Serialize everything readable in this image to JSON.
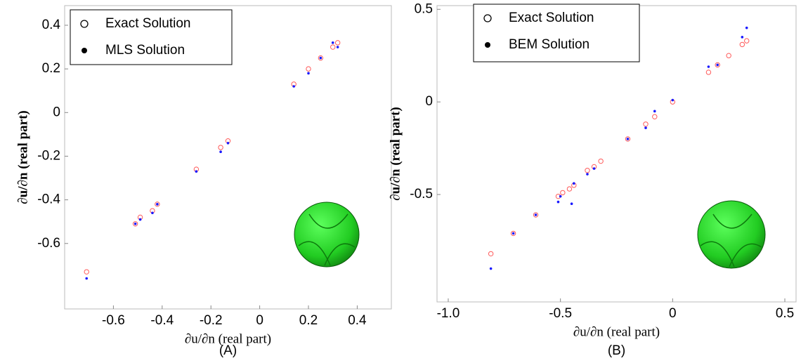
{
  "chart_data": [
    {
      "type": "scatter",
      "caption": "(A)",
      "xlabel": "∂u/∂n (real part)",
      "ylabel": "∂u/∂n (real part)",
      "xlim": [
        -0.8,
        0.54
      ],
      "ylim": [
        -0.9,
        0.49
      ],
      "xticks": [
        -0.6,
        -0.4,
        -0.2,
        0,
        0.2,
        0.4
      ],
      "yticks": [
        -0.6,
        -0.4,
        -0.2,
        0,
        0.2,
        0.4
      ],
      "series": [
        {
          "name": "Exact Solution",
          "color": "#ff5a5a",
          "marker": "open",
          "x": [
            -0.71,
            -0.51,
            -0.49,
            -0.44,
            -0.42,
            -0.26,
            -0.16,
            -0.13,
            0.14,
            0.2,
            0.25,
            0.3,
            0.32
          ],
          "values": [
            -0.73,
            -0.51,
            -0.48,
            -0.45,
            -0.42,
            -0.26,
            -0.16,
            -0.13,
            0.13,
            0.2,
            0.25,
            0.3,
            0.32
          ]
        },
        {
          "name": "MLS Solution",
          "color": "#1a1aff",
          "marker": "filled",
          "x": [
            -0.71,
            -0.51,
            -0.49,
            -0.44,
            -0.42,
            -0.26,
            -0.16,
            -0.13,
            0.14,
            0.2,
            0.25,
            0.3,
            0.32
          ],
          "values": [
            -0.76,
            -0.51,
            -0.49,
            -0.46,
            -0.42,
            -0.27,
            -0.18,
            -0.14,
            0.12,
            0.18,
            0.25,
            0.32,
            0.3
          ]
        }
      ]
    },
    {
      "type": "scatter",
      "caption": "(B)",
      "xlabel": "∂u/∂n (real part)",
      "ylabel": "∂u/∂n (real part)",
      "xlim": [
        -1.05,
        0.55
      ],
      "ylim": [
        -1.08,
        0.52
      ],
      "xticks": [
        {
          "value": -1,
          "label": "-1.0"
        },
        -0.5,
        0,
        0.5
      ],
      "yticks": [
        -0.5,
        0,
        0.5
      ],
      "series": [
        {
          "name": "Exact Solution",
          "color": "#ff5a5a",
          "marker": "open",
          "x": [
            -0.81,
            -0.71,
            -0.61,
            -0.51,
            -0.49,
            -0.46,
            -0.44,
            -0.38,
            -0.35,
            -0.32,
            -0.2,
            -0.12,
            -0.08,
            0,
            0.16,
            0.2,
            0.25,
            0.31,
            0.33
          ],
          "values": [
            -0.82,
            -0.71,
            -0.61,
            -0.51,
            -0.49,
            -0.47,
            -0.45,
            -0.37,
            -0.35,
            -0.32,
            -0.2,
            -0.12,
            -0.08,
            0,
            0.16,
            0.2,
            0.25,
            0.31,
            0.33
          ]
        },
        {
          "name": "BEM Solution",
          "color": "#1a1aff",
          "marker": "filled",
          "x": [
            -0.81,
            -0.71,
            -0.61,
            -0.51,
            -0.5,
            -0.45,
            -0.44,
            -0.38,
            -0.35,
            -0.2,
            -0.12,
            -0.08,
            0,
            0.16,
            0.2,
            0.31,
            0.33
          ],
          "values": [
            -0.9,
            -0.71,
            -0.61,
            -0.54,
            -0.51,
            -0.55,
            -0.44,
            -0.39,
            -0.36,
            -0.2,
            -0.14,
            -0.05,
            0.01,
            0.19,
            0.2,
            0.35,
            0.4
          ]
        }
      ]
    }
  ]
}
